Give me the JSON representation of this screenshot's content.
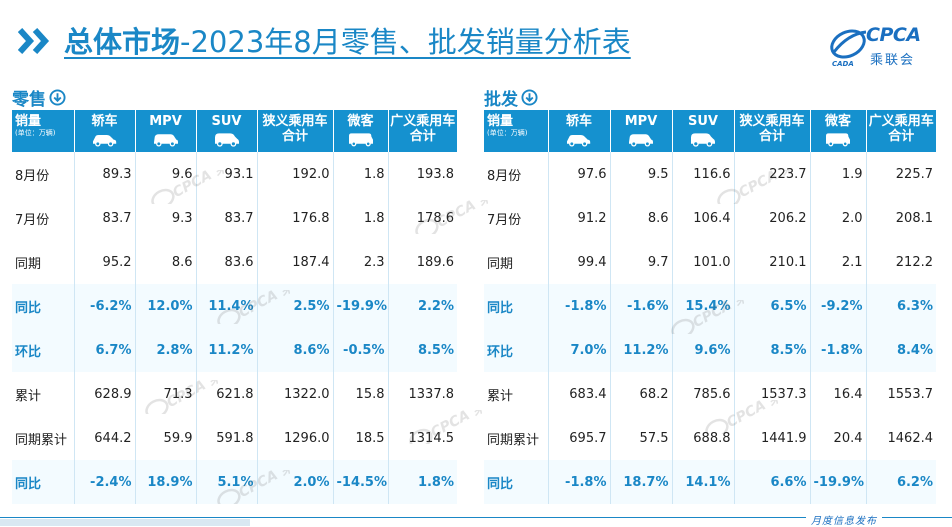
{
  "header": {
    "title_bold": "总体市场",
    "title_rest": "-2023年8月零售、批发销量分析表",
    "logo_text": "CPCA",
    "logo_cn": "乘联会",
    "logo_sub": "CADA"
  },
  "watermark": "CPCA 乘联会",
  "footer": {
    "text": "月度信息发布"
  },
  "retail": {
    "label": "零售",
    "headers": [
      {
        "label": "销量",
        "unit": "(单位：万辆)"
      },
      {
        "label": "轿车",
        "icon": "sedan-icon"
      },
      {
        "label": "MPV",
        "icon": "mpv-icon"
      },
      {
        "label": "SUV",
        "icon": "suv-icon"
      },
      {
        "label": "狭义乘用车合计"
      },
      {
        "label": "微客",
        "icon": "minivan-icon"
      },
      {
        "label": "广义乘用车合计"
      }
    ],
    "rows": [
      {
        "label": "8月份",
        "values": [
          "89.3",
          "9.6",
          "93.1",
          "192.0",
          "1.8",
          "193.8"
        ],
        "highlight": false
      },
      {
        "label": "7月份",
        "values": [
          "83.7",
          "9.3",
          "83.7",
          "176.8",
          "1.8",
          "178.6"
        ],
        "highlight": false
      },
      {
        "label": "同期",
        "values": [
          "95.2",
          "8.6",
          "83.6",
          "187.4",
          "2.3",
          "189.6"
        ],
        "highlight": false
      },
      {
        "label": "同比",
        "values": [
          "-6.2%",
          "12.0%",
          "11.4%",
          "2.5%",
          "-19.9%",
          "2.2%"
        ],
        "highlight": true
      },
      {
        "label": "环比",
        "values": [
          "6.7%",
          "2.8%",
          "11.2%",
          "8.6%",
          "-0.5%",
          "8.5%"
        ],
        "highlight": true
      },
      {
        "label": "累计",
        "values": [
          "628.9",
          "71.3",
          "621.8",
          "1322.0",
          "15.8",
          "1337.8"
        ],
        "highlight": false
      },
      {
        "label": "同期累计",
        "values": [
          "644.2",
          "59.9",
          "591.8",
          "1296.0",
          "18.5",
          "1314.5"
        ],
        "highlight": false
      },
      {
        "label": "同比",
        "values": [
          "-2.4%",
          "18.9%",
          "5.1%",
          "2.0%",
          "-14.5%",
          "1.8%"
        ],
        "highlight": true
      }
    ]
  },
  "wholesale": {
    "label": "批发",
    "headers": [
      {
        "label": "销量",
        "unit": "(单位：万辆)"
      },
      {
        "label": "轿车",
        "icon": "sedan-icon"
      },
      {
        "label": "MPV",
        "icon": "mpv-icon"
      },
      {
        "label": "SUV",
        "icon": "suv-icon"
      },
      {
        "label": "狭义乘用车合计"
      },
      {
        "label": "微客",
        "icon": "minivan-icon"
      },
      {
        "label": "广义乘用车合计"
      }
    ],
    "rows": [
      {
        "label": "8月份",
        "values": [
          "97.6",
          "9.5",
          "116.6",
          "223.7",
          "1.9",
          "225.7"
        ],
        "highlight": false
      },
      {
        "label": "7月份",
        "values": [
          "91.2",
          "8.6",
          "106.4",
          "206.2",
          "2.0",
          "208.1"
        ],
        "highlight": false
      },
      {
        "label": "同期",
        "values": [
          "99.4",
          "9.7",
          "101.0",
          "210.1",
          "2.1",
          "212.2"
        ],
        "highlight": false
      },
      {
        "label": "同比",
        "values": [
          "-1.8%",
          "-1.6%",
          "15.4%",
          "6.5%",
          "-9.2%",
          "6.3%"
        ],
        "highlight": true
      },
      {
        "label": "环比",
        "values": [
          "7.0%",
          "11.2%",
          "9.6%",
          "8.5%",
          "-1.8%",
          "8.4%"
        ],
        "highlight": true
      },
      {
        "label": "累计",
        "values": [
          "683.4",
          "68.2",
          "785.6",
          "1537.3",
          "16.4",
          "1553.7"
        ],
        "highlight": false
      },
      {
        "label": "同期累计",
        "values": [
          "695.7",
          "57.5",
          "688.8",
          "1441.9",
          "20.4",
          "1462.4"
        ],
        "highlight": false
      },
      {
        "label": "同比",
        "values": [
          "-1.8%",
          "18.7%",
          "14.1%",
          "6.6%",
          "-19.9%",
          "6.2%"
        ],
        "highlight": true
      }
    ]
  }
}
